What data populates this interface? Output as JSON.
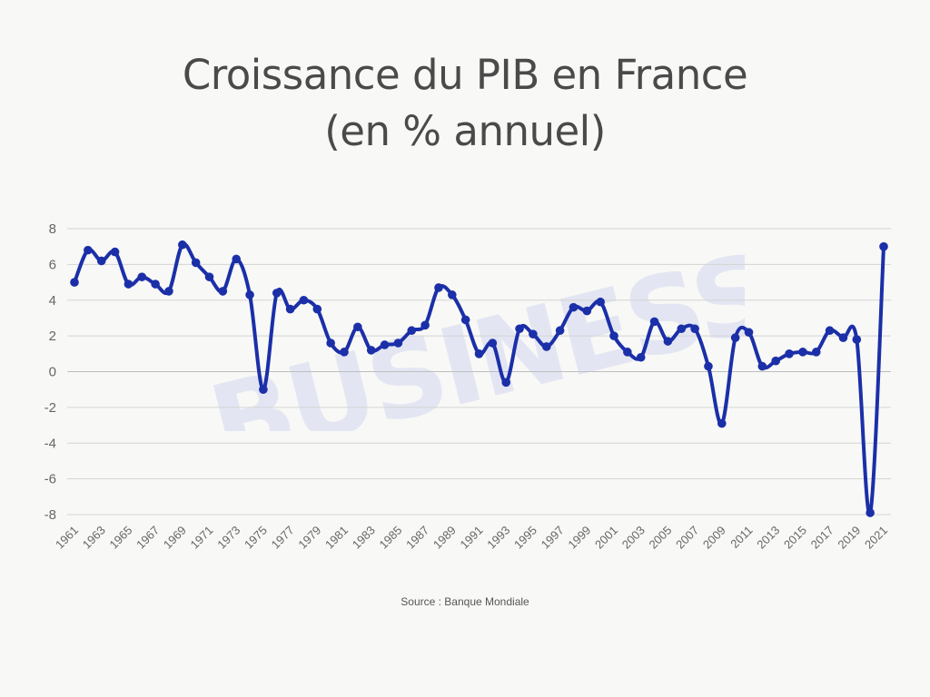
{
  "title_line1": "Croissance du PIB en France",
  "title_line2": "(en % annuel)",
  "source": "Source : Banque Mondiale",
  "watermark": "BUSINESS COO",
  "colors": {
    "line": "#1b2fa8",
    "grid": "#d4d4d4",
    "tick_text": "#666666",
    "title": "#4a4a4a",
    "background": "#f8f8f6"
  },
  "chart_data": {
    "type": "line",
    "title": "Croissance du PIB en France (en % annuel)",
    "xlabel": "",
    "ylabel": "",
    "ylim": [
      -8,
      8
    ],
    "yticks": [
      8,
      6,
      4,
      2,
      0,
      -2,
      -4,
      -6,
      -8
    ],
    "xtick_labels": [
      "1961",
      "1963",
      "1965",
      "1967",
      "1969",
      "1971",
      "1973",
      "1975",
      "1977",
      "1979",
      "1981",
      "1983",
      "1985",
      "1987",
      "1989",
      "1991",
      "1993",
      "1995",
      "1997",
      "1999",
      "2001",
      "2003",
      "2005",
      "2007",
      "2009",
      "2011",
      "2013",
      "2015",
      "2017",
      "2019",
      "2021"
    ],
    "grid": true,
    "legend": "none",
    "x": [
      1961,
      1962,
      1963,
      1964,
      1965,
      1966,
      1967,
      1968,
      1969,
      1970,
      1971,
      1972,
      1973,
      1974,
      1975,
      1976,
      1977,
      1978,
      1979,
      1980,
      1981,
      1982,
      1983,
      1984,
      1985,
      1986,
      1987,
      1988,
      1989,
      1990,
      1991,
      1992,
      1993,
      1994,
      1995,
      1996,
      1997,
      1998,
      1999,
      2000,
      2001,
      2002,
      2003,
      2004,
      2005,
      2006,
      2007,
      2008,
      2009,
      2010,
      2011,
      2012,
      2013,
      2014,
      2015,
      2016,
      2017,
      2018,
      2019,
      2020,
      2021
    ],
    "series": [
      {
        "values": [
          5.0,
          6.8,
          6.2,
          6.7,
          4.9,
          5.3,
          4.9,
          4.5,
          7.1,
          6.1,
          5.3,
          4.5,
          6.3,
          4.3,
          -1.0,
          4.4,
          3.5,
          4.0,
          3.5,
          1.6,
          1.1,
          2.5,
          1.2,
          1.5,
          1.6,
          2.3,
          2.6,
          4.7,
          4.3,
          2.9,
          1.0,
          1.6,
          -0.6,
          2.4,
          2.1,
          1.4,
          2.3,
          3.6,
          3.4,
          3.9,
          2.0,
          1.1,
          0.8,
          2.8,
          1.7,
          2.4,
          2.4,
          0.3,
          -2.9,
          1.9,
          2.2,
          0.3,
          0.6,
          1.0,
          1.1,
          1.1,
          2.3,
          1.9,
          1.8,
          -7.9,
          7.0
        ]
      }
    ]
  }
}
